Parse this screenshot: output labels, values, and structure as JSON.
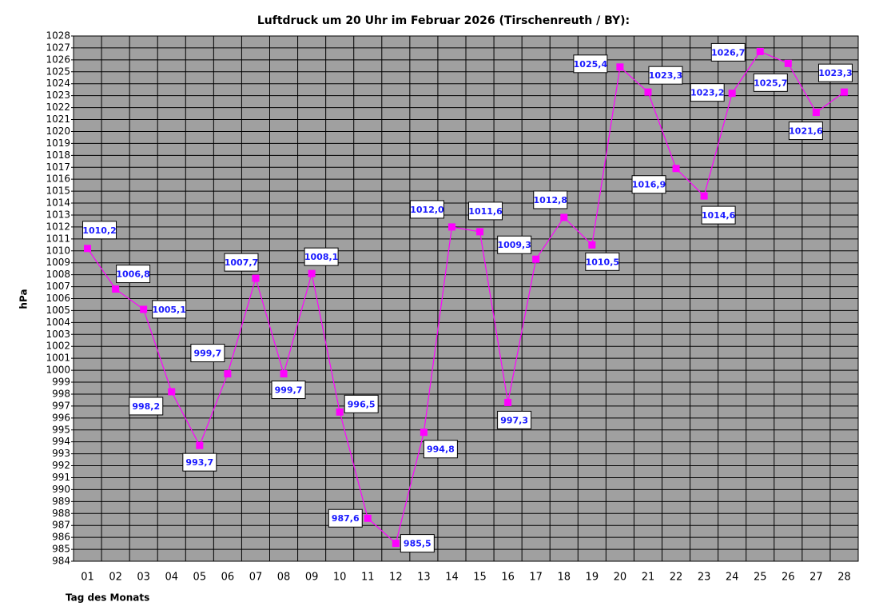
{
  "chart_data": {
    "type": "line",
    "title": "Luftdruck um 20 Uhr im Februar 2026 (Tirschenreuth / BY):",
    "y_label": "hPa",
    "x_label": "Tag des Monats",
    "categories": [
      "01",
      "02",
      "03",
      "04",
      "05",
      "06",
      "07",
      "08",
      "09",
      "10",
      "11",
      "12",
      "13",
      "14",
      "15",
      "16",
      "17",
      "18",
      "19",
      "20",
      "21",
      "22",
      "23",
      "24",
      "25",
      "26",
      "27",
      "28"
    ],
    "values": [
      1010.2,
      1006.8,
      1005.1,
      998.2,
      993.7,
      999.7,
      1007.7,
      999.7,
      1008.1,
      996.5,
      987.6,
      985.5,
      994.8,
      1012.0,
      1011.6,
      997.3,
      1009.3,
      1012.8,
      1010.5,
      1025.4,
      1023.3,
      1016.9,
      1014.6,
      1023.2,
      1026.7,
      1025.7,
      1021.6,
      1023.3
    ],
    "value_labels": [
      "1010,2",
      "1006,8",
      "1005,1",
      "998,2",
      "993,7",
      "999,7",
      "1007,7",
      "999,7",
      "1008,1",
      "996,5",
      "987,6",
      "985,5",
      "994,8",
      "1012,0",
      "1011,6",
      "997,3",
      "1009,3",
      "1012,8",
      "1010,5",
      "1025,4",
      "1023,3",
      "1016,9",
      "1014,6",
      "1023,2",
      "1026,7",
      "1025,7",
      "1021,6",
      "1023,3"
    ],
    "color": "#ff00ff",
    "ylim": [
      984,
      1028
    ],
    "yticks": [
      984,
      985,
      986,
      987,
      988,
      989,
      990,
      991,
      992,
      993,
      994,
      995,
      996,
      997,
      998,
      999,
      1000,
      1001,
      1002,
      1003,
      1004,
      1005,
      1006,
      1007,
      1008,
      1009,
      1010,
      1011,
      1012,
      1013,
      1014,
      1015,
      1016,
      1017,
      1018,
      1019,
      1020,
      1021,
      1022,
      1023,
      1024,
      1025,
      1026,
      1027,
      1028
    ],
    "grid": true
  }
}
